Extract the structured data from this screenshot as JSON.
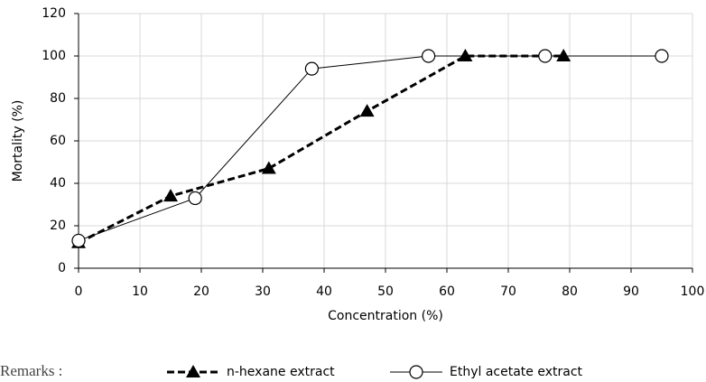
{
  "chart_data": {
    "type": "line",
    "x_label": "Concentration (%)",
    "y_label": "Mortality (%)",
    "legend_title": "Remarks :",
    "xlim": [
      0,
      100
    ],
    "xticks": [
      0,
      10,
      20,
      30,
      40,
      50,
      60,
      70,
      80,
      90,
      100
    ],
    "ylim": [
      0,
      120
    ],
    "yticks": [
      0,
      20,
      40,
      60,
      80,
      100,
      120
    ],
    "grid": true,
    "series": [
      {
        "name": "n-hexane extract",
        "color": "#000000",
        "line_style": "dashed",
        "marker": "triangle",
        "x": [
          0,
          15,
          31,
          47,
          63,
          79
        ],
        "values": [
          12,
          34,
          47,
          74,
          100,
          100
        ]
      },
      {
        "name": "Ethyl acetate extract",
        "color": "#000000",
        "line_style": "solid",
        "marker": "circle",
        "x": [
          0,
          19,
          38,
          57,
          76,
          95
        ],
        "values": [
          13,
          33,
          94,
          100,
          100,
          100
        ]
      }
    ]
  }
}
